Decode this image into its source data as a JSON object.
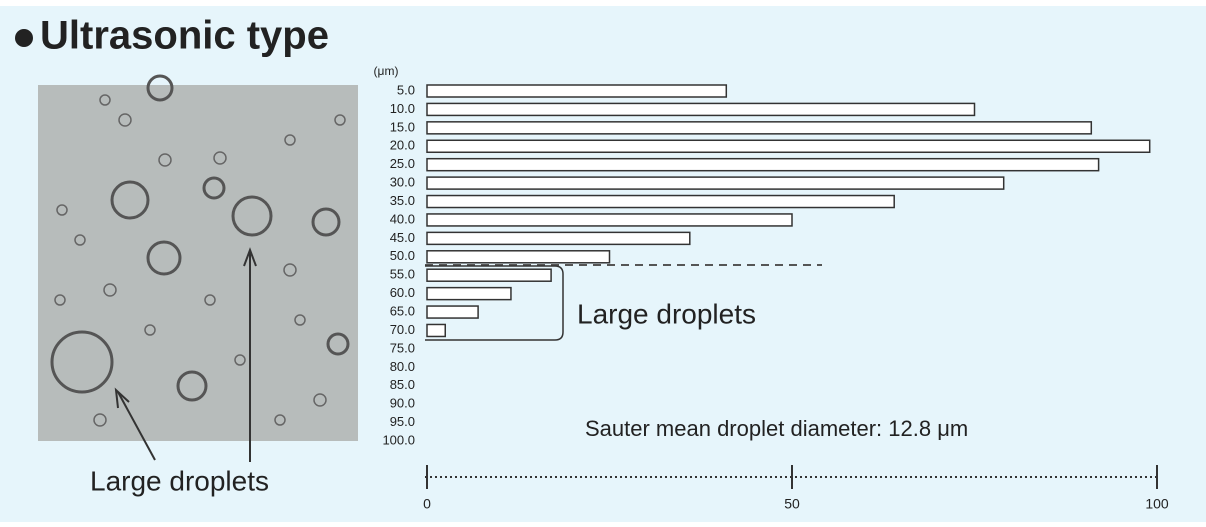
{
  "chart_data": {
    "type": "bar",
    "orientation": "horizontal",
    "title": "Ultrasonic type",
    "y_label": "(μm)",
    "categories": [
      "5.0",
      "10.0",
      "15.0",
      "20.0",
      "25.0",
      "30.0",
      "35.0",
      "40.0",
      "45.0",
      "50.0",
      "55.0",
      "60.0",
      "65.0",
      "70.0",
      "75.0",
      "80.0",
      "85.0",
      "90.0",
      "95.0",
      "100.0"
    ],
    "values": [
      41,
      75,
      91,
      99,
      92,
      79,
      64,
      50,
      36,
      25,
      17,
      11.5,
      7,
      2.5,
      0,
      0,
      0,
      0,
      0,
      0
    ],
    "color": "#ffffff",
    "xlim": [
      0,
      100
    ],
    "xticks": [
      0,
      50,
      100
    ],
    "annotations": [
      "Large droplets",
      "Sauter mean droplet diameter: 12.8 μm",
      "Large droplets"
    ]
  }
}
